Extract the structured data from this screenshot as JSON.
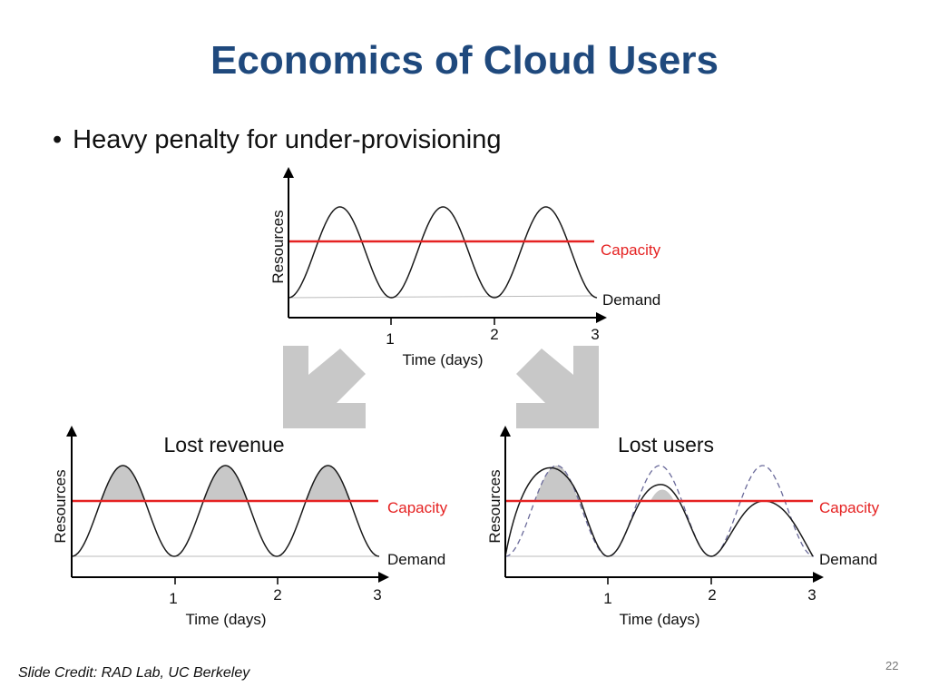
{
  "slide": {
    "title": "Economics of Cloud Users",
    "bullet": "Heavy penalty for under-provisioning",
    "credit": "Slide Credit: RAD Lab, UC Berkeley",
    "page_number": "22"
  },
  "colors": {
    "title": "#1f497d",
    "capacity_line": "#e52222",
    "demand_curve": "#1a1a1a",
    "lost_area": "#c8c8c8",
    "arrow": "#c8c8c8",
    "lost_demand_dashed": "#6a6a9a"
  },
  "top_chart": {
    "ylabel": "Resources",
    "xlabel": "Time (days)",
    "ticks": [
      "1",
      "2",
      "3"
    ],
    "capacity_label": "Capacity",
    "demand_label": "Demand"
  },
  "left_chart": {
    "title": "Lost revenue",
    "ylabel": "Resources",
    "xlabel": "Time (days)",
    "ticks": [
      "1",
      "2",
      "3"
    ],
    "capacity_label": "Capacity",
    "demand_label": "Demand"
  },
  "right_chart": {
    "title": "Lost users",
    "ylabel": "Resources",
    "xlabel": "Time (days)",
    "ticks": [
      "1",
      "2",
      "3"
    ],
    "capacity_label": "Capacity",
    "demand_label": "Demand"
  }
}
